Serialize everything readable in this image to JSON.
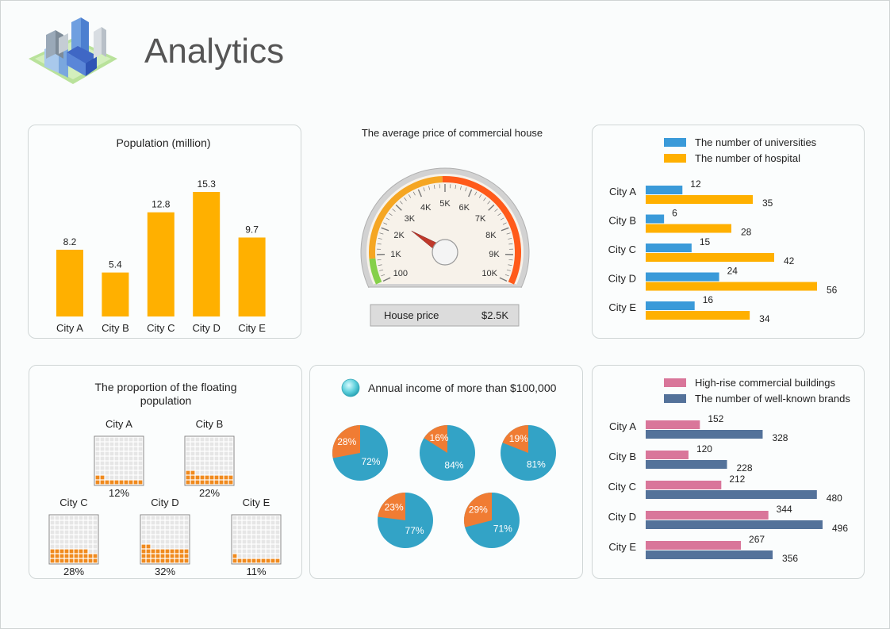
{
  "header": {
    "title": "Analytics",
    "logo_icon": "city-buildings-icon"
  },
  "chart_data": [
    {
      "type": "bar",
      "id": "population",
      "title": "Population (million)",
      "categories": [
        "City A",
        "City B",
        "City C",
        "City D",
        "City E"
      ],
      "values": [
        8.2,
        5.4,
        12.8,
        15.3,
        9.7
      ],
      "value_labels": [
        "8.2",
        "5.4",
        "12.8",
        "15.3",
        "9.7"
      ],
      "color": "#ffb000",
      "ylim": [
        0,
        15.3
      ]
    },
    {
      "type": "gauge",
      "id": "house-price",
      "title": "The average price of commercial house",
      "ticks": [
        "100",
        "1K",
        "2K",
        "3K",
        "4K",
        "5K",
        "6K",
        "7K",
        "8K",
        "9K",
        "10K"
      ],
      "needle_value_k": 2.5,
      "readout_label": "House price",
      "readout_value": "$2.5K",
      "band_colors": [
        "#86d04a",
        "#f5a623",
        "#ff5a1a"
      ]
    },
    {
      "type": "bar",
      "orientation": "horizontal",
      "id": "universities-hospitals",
      "categories": [
        "City A",
        "City B",
        "City C",
        "City D",
        "City E"
      ],
      "series": [
        {
          "name": "The number of universities",
          "values": [
            12,
            6,
            15,
            24,
            16
          ],
          "labels": [
            "12",
            "6",
            "15",
            "24",
            "16"
          ],
          "color": "#3a9ad9"
        },
        {
          "name": "The number of hospital",
          "values": [
            35,
            28,
            42,
            56,
            34
          ],
          "labels": [
            "35",
            "28",
            "42",
            "56",
            "34"
          ],
          "color": "#ffb000"
        }
      ],
      "xlim": [
        0,
        56
      ]
    },
    {
      "type": "waffle",
      "id": "floating-population",
      "title": "The proportion of the floating population",
      "categories": [
        "City A",
        "City B",
        "City C",
        "City D",
        "City E"
      ],
      "values": [
        12,
        22,
        28,
        32,
        11
      ],
      "value_labels": [
        "12%",
        "22%",
        "28%",
        "32%",
        "11%"
      ],
      "fill_color": "#f08a1e",
      "empty_color": "#e6e6e6"
    },
    {
      "type": "pie",
      "id": "annual-income",
      "title": "Annual income of more than $100,000",
      "pies": [
        {
          "slices": [
            28,
            72
          ],
          "labels": [
            "28%",
            "72%"
          ]
        },
        {
          "slices": [
            16,
            84
          ],
          "labels": [
            "16%",
            "84%"
          ]
        },
        {
          "slices": [
            19,
            81
          ],
          "labels": [
            "19%",
            "81%"
          ]
        },
        {
          "slices": [
            23,
            77
          ],
          "labels": [
            "23%",
            "77%"
          ]
        },
        {
          "slices": [
            29,
            71
          ],
          "labels": [
            "29%",
            "71%"
          ]
        }
      ],
      "colors": [
        "#f07c33",
        "#33a3c6"
      ]
    },
    {
      "type": "bar",
      "orientation": "horizontal",
      "id": "commercial-brands",
      "categories": [
        "City A",
        "City B",
        "City C",
        "City D",
        "City E"
      ],
      "series": [
        {
          "name": "High-rise commercial buildings",
          "values": [
            152,
            120,
            212,
            344,
            267
          ],
          "labels": [
            "152",
            "120",
            "212",
            "344",
            "267"
          ],
          "color": "#d9769a"
        },
        {
          "name": "The number of well-known brands",
          "values": [
            328,
            228,
            480,
            496,
            356
          ],
          "labels": [
            "328",
            "228",
            "480",
            "496",
            "356"
          ],
          "color": "#54729a"
        }
      ],
      "xlim": [
        0,
        496
      ]
    }
  ]
}
